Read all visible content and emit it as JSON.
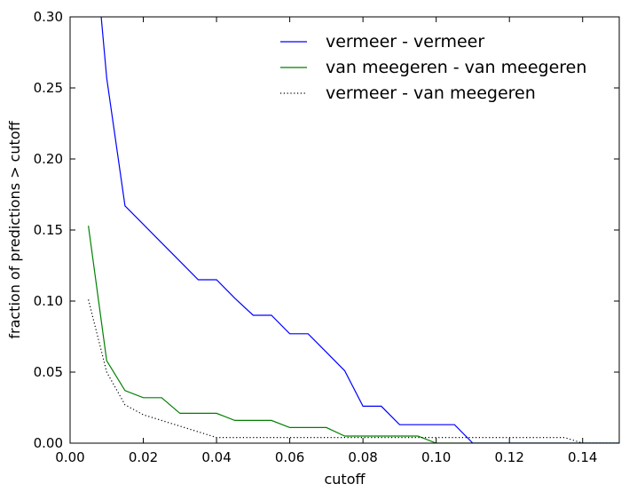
{
  "chart_data": {
    "type": "line",
    "xlabel": "cutoff",
    "ylabel": "fraction of predictions > cutoff",
    "xlim": [
      0.0,
      0.15
    ],
    "ylim": [
      0.0,
      0.3
    ],
    "x_ticks": [
      0.0,
      0.02,
      0.04,
      0.06,
      0.08,
      0.1,
      0.12,
      0.14
    ],
    "x_tick_labels": [
      "0.00",
      "0.02",
      "0.04",
      "0.06",
      "0.08",
      "0.10",
      "0.12",
      "0.14"
    ],
    "y_ticks": [
      0.0,
      0.05,
      0.1,
      0.15,
      0.2,
      0.25,
      0.3
    ],
    "y_tick_labels": [
      "0.00",
      "0.05",
      "0.10",
      "0.15",
      "0.20",
      "0.25",
      "0.30"
    ],
    "grid": false,
    "legend_position": "top-right",
    "series": [
      {
        "name": "vermeer - vermeer",
        "color": "#0000ff",
        "style": "solid",
        "x": [
          0.005,
          0.01,
          0.015,
          0.02,
          0.025,
          0.03,
          0.035,
          0.04,
          0.045,
          0.05,
          0.055,
          0.06,
          0.065,
          0.07,
          0.075,
          0.08,
          0.085,
          0.09,
          0.095,
          0.1,
          0.105,
          0.11,
          0.115,
          0.12,
          0.125,
          0.13,
          0.135,
          0.14,
          0.145,
          0.15
        ],
        "y": [
          0.4,
          0.257,
          0.167,
          0.154,
          0.141,
          0.128,
          0.115,
          0.115,
          0.102,
          0.09,
          0.09,
          0.077,
          0.077,
          0.064,
          0.051,
          0.026,
          0.026,
          0.013,
          0.013,
          0.013,
          0.013,
          0.0,
          0.0,
          0.0,
          0.0,
          0.0,
          0.0,
          0.0,
          0.0,
          0.0
        ]
      },
      {
        "name": "van meegeren - van meegeren",
        "color": "#008000",
        "style": "solid",
        "x": [
          0.005,
          0.01,
          0.015,
          0.02,
          0.025,
          0.03,
          0.035,
          0.04,
          0.045,
          0.05,
          0.055,
          0.06,
          0.065,
          0.07,
          0.075,
          0.08,
          0.085,
          0.09,
          0.095,
          0.1,
          0.105,
          0.11,
          0.115,
          0.12,
          0.125,
          0.13,
          0.135,
          0.14,
          0.145,
          0.15
        ],
        "y": [
          0.153,
          0.058,
          0.037,
          0.032,
          0.032,
          0.021,
          0.021,
          0.021,
          0.016,
          0.016,
          0.016,
          0.011,
          0.011,
          0.011,
          0.005,
          0.005,
          0.005,
          0.005,
          0.005,
          0.0,
          0.0,
          0.0,
          0.0,
          0.0,
          0.0,
          0.0,
          0.0,
          0.0,
          0.0,
          0.0
        ]
      },
      {
        "name": "vermeer - van meegeren",
        "color": "#000000",
        "style": "dotted",
        "x": [
          0.005,
          0.01,
          0.015,
          0.02,
          0.025,
          0.03,
          0.035,
          0.04,
          0.045,
          0.05,
          0.055,
          0.06,
          0.065,
          0.07,
          0.075,
          0.08,
          0.085,
          0.09,
          0.095,
          0.1,
          0.105,
          0.11,
          0.115,
          0.12,
          0.125,
          0.13,
          0.135,
          0.14,
          0.145,
          0.15
        ],
        "y": [
          0.101,
          0.05,
          0.027,
          0.02,
          0.016,
          0.012,
          0.008,
          0.004,
          0.004,
          0.004,
          0.004,
          0.004,
          0.004,
          0.004,
          0.004,
          0.004,
          0.004,
          0.004,
          0.004,
          0.004,
          0.004,
          0.004,
          0.004,
          0.004,
          0.004,
          0.004,
          0.004,
          0.0,
          0.0,
          0.0
        ]
      }
    ]
  }
}
